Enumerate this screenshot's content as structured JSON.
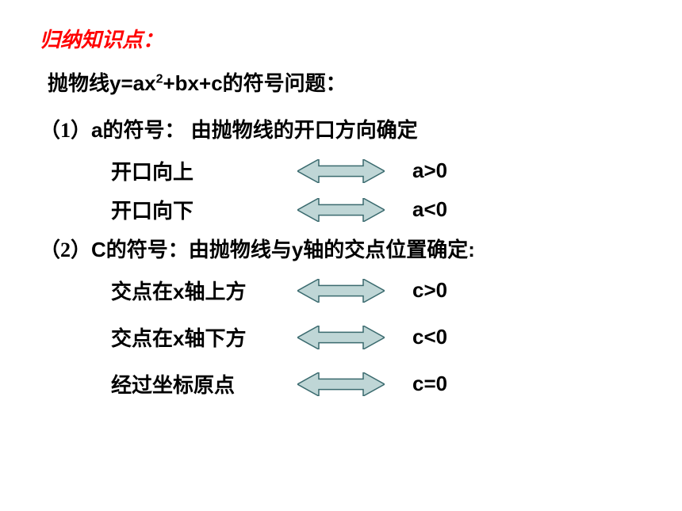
{
  "title": "归纳知识点：",
  "subtitle_pre": "抛物线y=ax",
  "subtitle_sup": "2",
  "subtitle_post": "+bx+c的符号问题：",
  "section1": {
    "num": "（1）",
    "var": "a",
    "label": "的符号：",
    "desc": "由抛物线的开口方向确定",
    "rows": [
      {
        "cond": "开口向上",
        "res": "a>0"
      },
      {
        "cond": "开口向下",
        "res": "a<0"
      }
    ]
  },
  "section2": {
    "num": "（2）",
    "var": "C",
    "label": "的符号：",
    "desc": "由抛物线与y轴的交点位置确定:",
    "rows": [
      {
        "cond": "交点在x轴上方",
        "res": "c>0"
      },
      {
        "cond": "交点在x轴下方",
        "res": "c<0"
      },
      {
        "cond": "经过坐标原点",
        "res": "c=0"
      }
    ]
  },
  "arrow": {
    "fill": "#bfd6d6",
    "stroke": "#3a6a6e",
    "width": 110,
    "height": 30
  }
}
